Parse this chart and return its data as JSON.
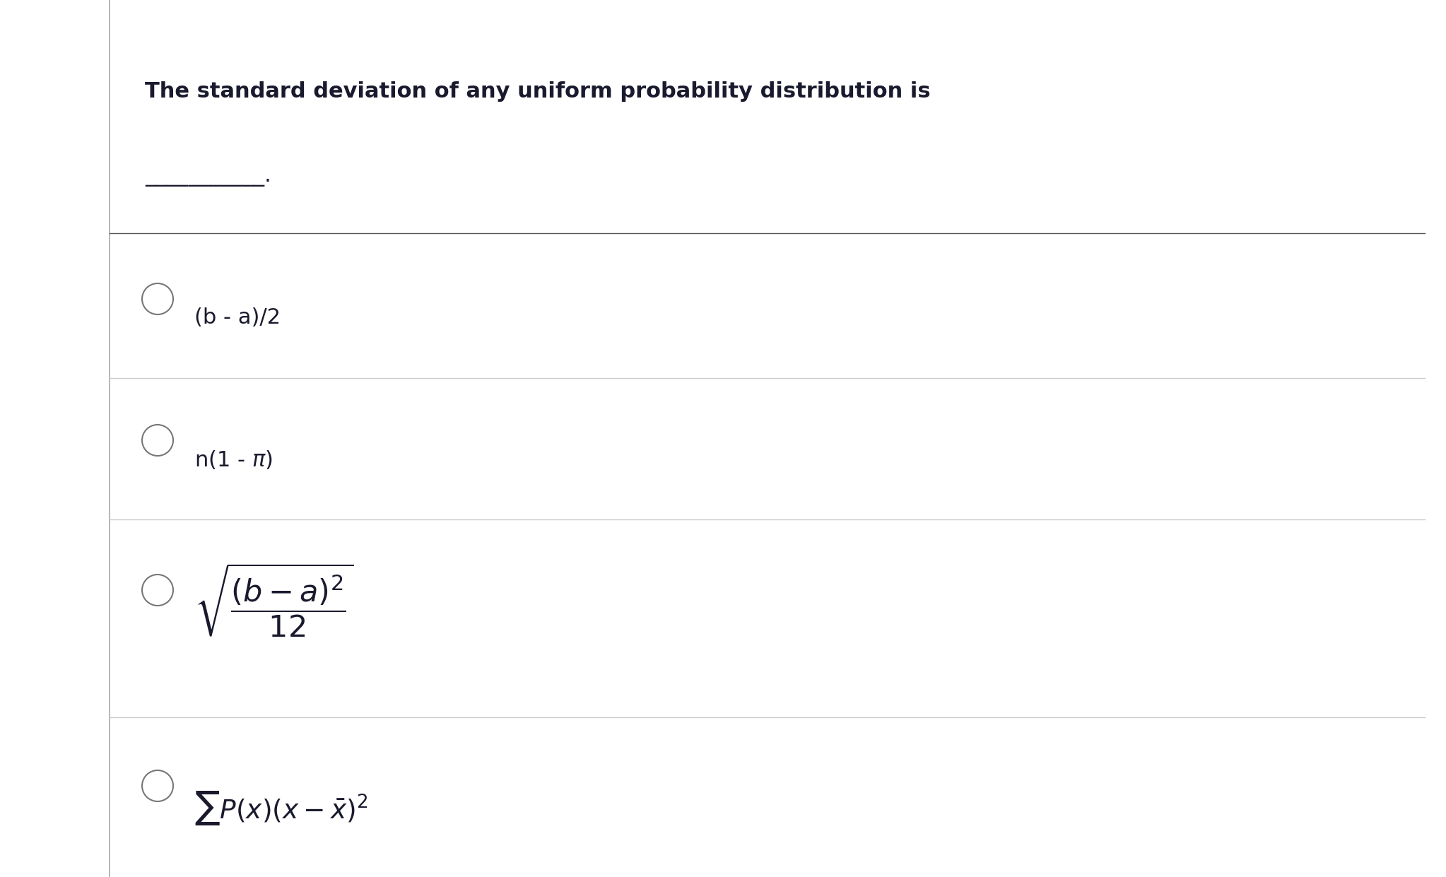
{
  "background_color": "#ffffff",
  "left_panel_color": "#f5f5f5",
  "border_color": "#b0b0b0",
  "divider_color": "#cccccc",
  "text_color": "#1a1a2e",
  "circle_color": "#777777",
  "question_text": "The standard deviation of any uniform probability distribution is",
  "blank_line": "___________.",
  "option1": "(b - a)/2",
  "option2": "n(1 - π)",
  "title_fontsize": 22,
  "option_fontsize": 22,
  "fig_width": 20.46,
  "fig_height": 12.41,
  "dpi": 100
}
